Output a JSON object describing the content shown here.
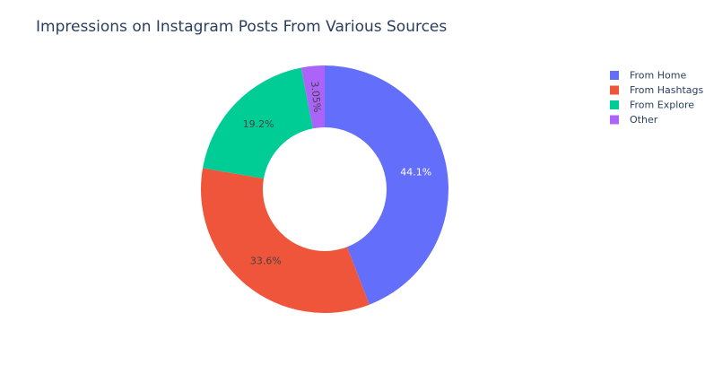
{
  "chart_data": {
    "type": "pie",
    "subtype": "donut",
    "title": "Impressions on Instagram Posts From Various Sources",
    "categories": [
      "From Home",
      "From Hashtags",
      "From Explore",
      "Other"
    ],
    "values": [
      44.1,
      33.6,
      19.2,
      3.05
    ],
    "labels": [
      "44.1%",
      "33.6%",
      "19.2%",
      "3.05%"
    ],
    "colors": [
      "#636efa",
      "#ef553b",
      "#00cc96",
      "#ab63fa"
    ],
    "label_colors": [
      "#ffffff",
      "#444444",
      "#444444",
      "#444444"
    ],
    "legend_position": "top-right",
    "direction": "clockwise",
    "start": "top"
  }
}
